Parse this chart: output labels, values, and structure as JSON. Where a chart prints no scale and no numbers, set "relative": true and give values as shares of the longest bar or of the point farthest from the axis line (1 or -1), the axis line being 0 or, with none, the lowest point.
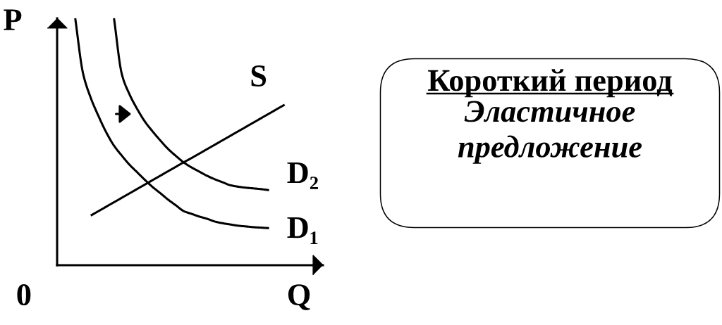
{
  "chart_data": [
    {
      "type": "line",
      "relative": true,
      "xlabel": "Q",
      "ylabel": "P",
      "annotations": [
        "0"
      ],
      "line_style": "solid",
      "categories": [
        null,
        null,
        null,
        null,
        null,
        null,
        null,
        null,
        null,
        null,
        null,
        null,
        null,
        null,
        null,
        null,
        null,
        null,
        null,
        null,
        null,
        null,
        null,
        null,
        null,
        null,
        null,
        null
      ],
      "series": [
        {
          "name": "D₁",
          "color": "#000000",
          "values": [
            1.0,
            0.778,
            0.678,
            0.604,
            0.538,
            0.484,
            0.444,
            0.407,
            0.376,
            0.345,
            0.316,
            0.291,
            0.265,
            0.242,
            0.219,
            0.208,
            0.197,
            0.188,
            0.177,
            0.17,
            0.165,
            0.16,
            0.157,
            0.154,
            0.152,
            0.15,
            null,
            null
          ]
        },
        {
          "name": "D₂",
          "color": "#000000",
          "values": [
            null,
            null,
            null,
            null,
            null,
            1.0,
            0.775,
            0.692,
            0.632,
            0.581,
            0.541,
            0.504,
            0.47,
            0.442,
            0.416,
            0.396,
            0.379,
            0.362,
            0.348,
            0.336,
            0.324,
            0.318,
            0.314,
            0.311,
            0.308,
            0.304,
            null,
            null
          ]
        },
        {
          "name": "S",
          "color": "#000000",
          "values": [
            null,
            null,
            0.201,
            0.219,
            0.237,
            0.255,
            0.273,
            0.291,
            0.309,
            0.327,
            0.345,
            0.363,
            0.381,
            0.399,
            0.417,
            0.434,
            0.452,
            0.47,
            0.488,
            0.506,
            0.524,
            0.542,
            0.56,
            0.578,
            0.596,
            0.614,
            0.632,
            0.65
          ]
        }
      ]
    },
    {
      "type": "other",
      "title": "Короткий период",
      "subtitle": "Эластичное предложение"
    }
  ]
}
